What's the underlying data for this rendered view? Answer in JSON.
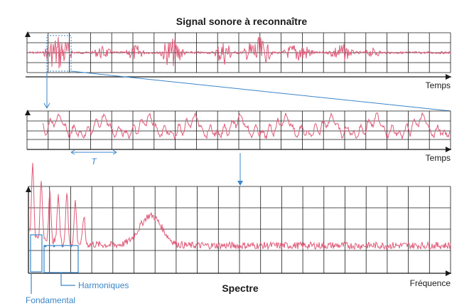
{
  "title": "Signal sonore à reconnaître",
  "panels": {
    "signal": {
      "xlabel": "Temps"
    },
    "zoom": {
      "xlabel": "Temps",
      "period_label": "T"
    },
    "spectrum": {
      "title": "Spectre",
      "xlabel": "Fréquence"
    }
  },
  "annotations": {
    "harmonics": "Harmoniques",
    "fundamental": "Fondamental"
  },
  "colors": {
    "signal": "#e05a78",
    "annotation": "#3a86c8",
    "grid": "#1a1a1a"
  }
}
